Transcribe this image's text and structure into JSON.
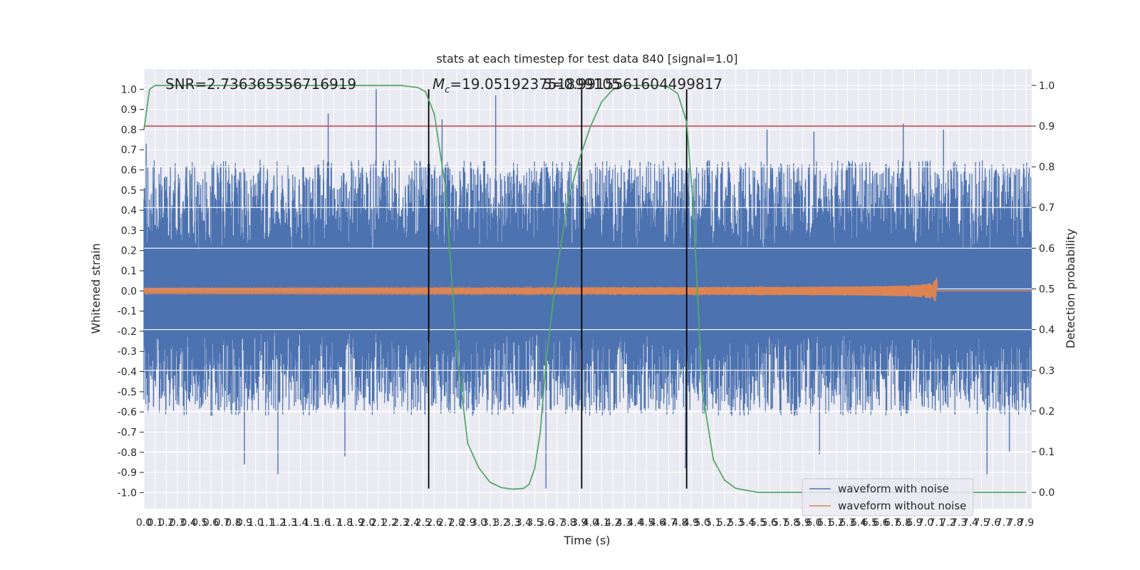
{
  "chart_data": {
    "type": "line",
    "title": "stats at each timestep for test data 840 [signal=1.0]",
    "xlabel": "Time (s)",
    "ylabel": "Whitened strain",
    "y2label": "Detection probability",
    "xlim": [
      0.0,
      7.95
    ],
    "ylim": [
      -1.08,
      1.1
    ],
    "y2lim": [
      -0.04,
      1.04
    ],
    "x_ticks": [
      "0.0",
      "0.1",
      "0.2",
      "0.3",
      "0.4",
      "0.5",
      "0.6",
      "0.7",
      "0.8",
      "0.9",
      "1.0",
      "1.1",
      "1.2",
      "1.3",
      "1.4",
      "1.5",
      "1.6",
      "1.7",
      "1.8",
      "1.9",
      "2.0",
      "2.1",
      "2.2",
      "2.3",
      "2.4",
      "2.5",
      "2.6",
      "2.7",
      "2.8",
      "2.9",
      "3.0",
      "3.1",
      "3.2",
      "3.3",
      "3.4",
      "3.5",
      "3.6",
      "3.7",
      "3.8",
      "3.9",
      "4.0",
      "4.1",
      "4.2",
      "4.3",
      "4.4",
      "4.5",
      "4.6",
      "4.7",
      "4.8",
      "4.9",
      "5.0",
      "5.1",
      "5.2",
      "5.3",
      "5.4",
      "5.5",
      "5.6",
      "5.7",
      "5.8",
      "5.9",
      "6.0",
      "6.1",
      "6.2",
      "6.3",
      "6.4",
      "6.5",
      "6.6",
      "6.7",
      "6.8",
      "6.9",
      "7.0",
      "7.1",
      "7.2",
      "7.3",
      "7.4",
      "7.5",
      "7.6",
      "7.7",
      "7.8",
      "7.9"
    ],
    "y_ticks": [
      "-1.0",
      "-0.9",
      "-0.8",
      "-0.7",
      "-0.6",
      "-0.5",
      "-0.4",
      "-0.3",
      "-0.2",
      "-0.1",
      "0.0",
      "0.1",
      "0.2",
      "0.3",
      "0.4",
      "0.5",
      "0.6",
      "0.7",
      "0.8",
      "0.9",
      "1.0"
    ],
    "y2_ticks": [
      "0.0",
      "0.1",
      "0.2",
      "0.3",
      "0.4",
      "0.5",
      "0.6",
      "0.7",
      "0.8",
      "0.9",
      "1.0"
    ],
    "annotations": {
      "snr": "SNR=2.736365556716919",
      "mc": "=19.051923751899105",
      "mc_symbol": "M",
      "mc_sub": "c",
      "tail": "5=0.9915561604499817"
    },
    "threshold": {
      "value": 0.9,
      "axis": "right",
      "color": "#c44e52"
    },
    "vlines": [
      2.55,
      3.92,
      4.86
    ],
    "vline_range": [
      -0.98,
      1.0
    ],
    "grid": true,
    "legend_position": "lower right",
    "series": [
      {
        "name": "waveform with noise",
        "color": "#4c72b0",
        "axis": "left",
        "kind": "noise",
        "band_envelope": 0.2,
        "peaks": [
          {
            "x": 0.02,
            "y": 0.73
          },
          {
            "x": 1.65,
            "y": 0.88
          },
          {
            "x": 2.08,
            "y": 1.0
          },
          {
            "x": 2.67,
            "y": 0.85
          },
          {
            "x": 3.15,
            "y": 0.97
          },
          {
            "x": 5.58,
            "y": 0.8
          },
          {
            "x": 6.0,
            "y": 0.79
          },
          {
            "x": 6.8,
            "y": 0.83
          },
          {
            "x": 7.16,
            "y": 0.8
          },
          {
            "x": 0.9,
            "y": -0.86
          },
          {
            "x": 1.2,
            "y": -0.91
          },
          {
            "x": 1.8,
            "y": -0.82
          },
          {
            "x": 3.6,
            "y": -0.98
          },
          {
            "x": 4.85,
            "y": -0.88
          },
          {
            "x": 6.05,
            "y": -0.81
          },
          {
            "x": 7.55,
            "y": -0.91
          },
          {
            "x": 7.75,
            "y": -0.8
          }
        ]
      },
      {
        "name": "waveform without noise",
        "color": "#dd8452",
        "axis": "left",
        "kind": "chirp",
        "merger_time": 7.1,
        "peak_amplitude": 0.12
      },
      {
        "name": "detection probability",
        "color": "#55a868",
        "axis": "right",
        "x": [
          0.0,
          0.05,
          0.1,
          0.2,
          0.5,
          1.0,
          1.5,
          2.0,
          2.3,
          2.45,
          2.52,
          2.6,
          2.7,
          2.8,
          2.9,
          3.0,
          3.1,
          3.2,
          3.3,
          3.4,
          3.45,
          3.5,
          3.55,
          3.6,
          3.7,
          3.8,
          3.9,
          4.0,
          4.1,
          4.2,
          4.3,
          4.4,
          4.6,
          4.7,
          4.78,
          4.86,
          4.92,
          5.0,
          5.1,
          5.2,
          5.3,
          5.5,
          6.0,
          6.5,
          7.0,
          7.5,
          7.9
        ],
        "y": [
          0.89,
          0.99,
          1.0,
          1.0,
          1.0,
          1.0,
          1.0,
          1.0,
          1.0,
          0.995,
          0.985,
          0.93,
          0.75,
          0.35,
          0.12,
          0.06,
          0.025,
          0.012,
          0.008,
          0.01,
          0.02,
          0.06,
          0.15,
          0.32,
          0.55,
          0.72,
          0.82,
          0.9,
          0.96,
          0.99,
          1.0,
          1.0,
          1.0,
          0.995,
          0.98,
          0.91,
          0.7,
          0.25,
          0.08,
          0.03,
          0.01,
          0.0,
          0.0,
          0.0,
          0.0,
          0.0,
          0.0
        ]
      }
    ]
  }
}
